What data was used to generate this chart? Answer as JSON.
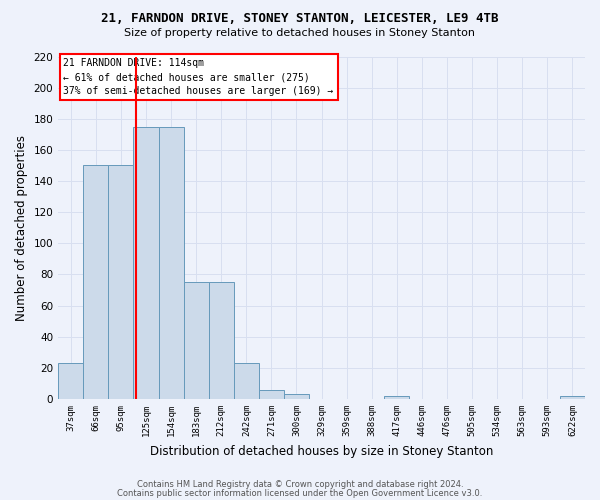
{
  "title1": "21, FARNDON DRIVE, STONEY STANTON, LEICESTER, LE9 4TB",
  "title2": "Size of property relative to detached houses in Stoney Stanton",
  "xlabel": "Distribution of detached houses by size in Stoney Stanton",
  "ylabel": "Number of detached properties",
  "categories": [
    "37sqm",
    "66sqm",
    "95sqm",
    "125sqm",
    "154sqm",
    "183sqm",
    "212sqm",
    "242sqm",
    "271sqm",
    "300sqm",
    "329sqm",
    "359sqm",
    "388sqm",
    "417sqm",
    "446sqm",
    "476sqm",
    "505sqm",
    "534sqm",
    "563sqm",
    "593sqm",
    "622sqm"
  ],
  "values": [
    23,
    150,
    150,
    175,
    175,
    75,
    75,
    23,
    6,
    3,
    0,
    0,
    0,
    2,
    0,
    0,
    0,
    0,
    0,
    0,
    2
  ],
  "bar_color": "#ccdaea",
  "bar_edge_color": "#6699bb",
  "bar_linewidth": 0.7,
  "annotation_text_line1": "21 FARNDON DRIVE: 114sqm",
  "annotation_text_line2": "← 61% of detached houses are smaller (275)",
  "annotation_text_line3": "37% of semi-detached houses are larger (169) →",
  "redline_x": 2.6,
  "ylim": [
    0,
    220
  ],
  "yticks": [
    0,
    20,
    40,
    60,
    80,
    100,
    120,
    140,
    160,
    180,
    200,
    220
  ],
  "grid_color": "#d8dff0",
  "bg_color": "#eef2fb",
  "footnote1": "Contains HM Land Registry data © Crown copyright and database right 2024.",
  "footnote2": "Contains public sector information licensed under the Open Government Licence v3.0."
}
